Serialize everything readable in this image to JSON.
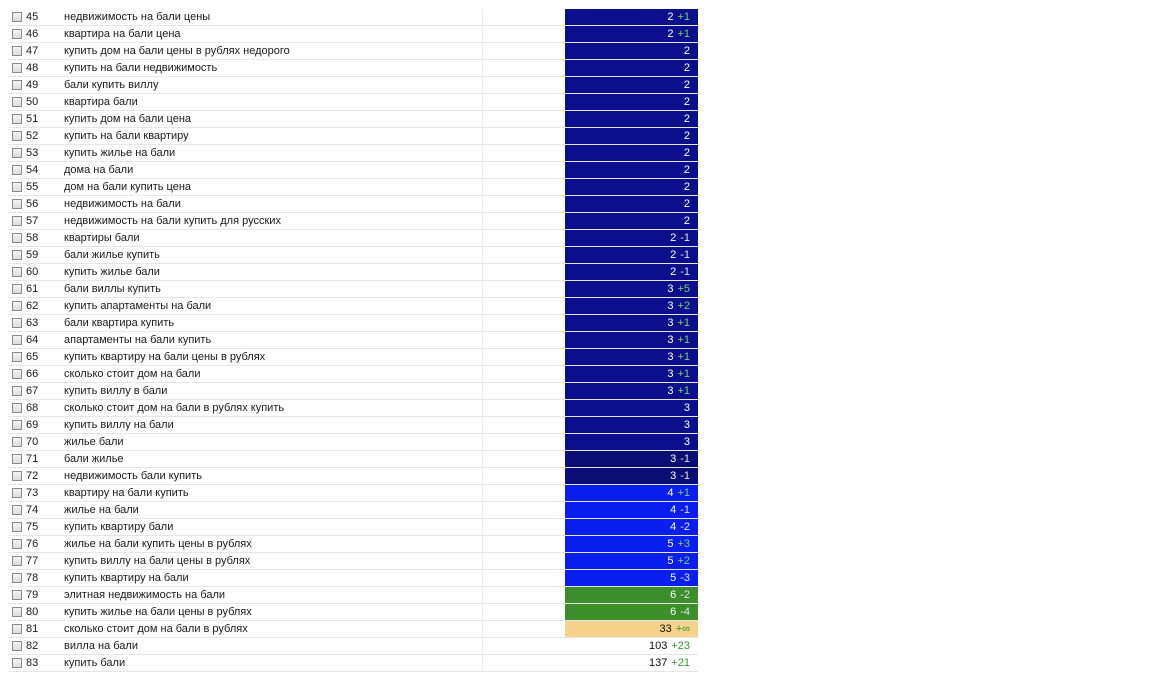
{
  "colors": {
    "navy": "#0b0f8c",
    "navy_dark": "#0a0d74",
    "blue": "#0a1ef0",
    "green": "#3b8e2a",
    "peach": "#f5d28c",
    "none": "#ffffff"
  },
  "rows": [
    {
      "num": "45",
      "keyword": "недвижимость на бали цены",
      "pos": "2",
      "chg": "+1",
      "dir": "up",
      "bg": "navy"
    },
    {
      "num": "46",
      "keyword": "квартира на бали цена",
      "pos": "2",
      "chg": "+1",
      "dir": "up",
      "bg": "navy"
    },
    {
      "num": "47",
      "keyword": "купить дом на бали цены в рублях недорого",
      "pos": "2",
      "chg": "",
      "dir": "",
      "bg": "navy"
    },
    {
      "num": "48",
      "keyword": "купить на бали недвижимость",
      "pos": "2",
      "chg": "",
      "dir": "",
      "bg": "navy"
    },
    {
      "num": "49",
      "keyword": "бали купить виллу",
      "pos": "2",
      "chg": "",
      "dir": "",
      "bg": "navy"
    },
    {
      "num": "50",
      "keyword": "квартира бали",
      "pos": "2",
      "chg": "",
      "dir": "",
      "bg": "navy"
    },
    {
      "num": "51",
      "keyword": "купить дом на бали цена",
      "pos": "2",
      "chg": "",
      "dir": "",
      "bg": "navy"
    },
    {
      "num": "52",
      "keyword": "купить на бали квартиру",
      "pos": "2",
      "chg": "",
      "dir": "",
      "bg": "navy"
    },
    {
      "num": "53",
      "keyword": "купить жилье на бали",
      "pos": "2",
      "chg": "",
      "dir": "",
      "bg": "navy"
    },
    {
      "num": "54",
      "keyword": "дома на бали",
      "pos": "2",
      "chg": "",
      "dir": "",
      "bg": "navy"
    },
    {
      "num": "55",
      "keyword": "дом на бали купить цена",
      "pos": "2",
      "chg": "",
      "dir": "",
      "bg": "navy"
    },
    {
      "num": "56",
      "keyword": "недвижимость на бали",
      "pos": "2",
      "chg": "",
      "dir": "",
      "bg": "navy"
    },
    {
      "num": "57",
      "keyword": "недвижимость на бали купить для русских",
      "pos": "2",
      "chg": "",
      "dir": "",
      "bg": "navy"
    },
    {
      "num": "58",
      "keyword": "квартиры бали",
      "pos": "2",
      "chg": "-1",
      "dir": "down",
      "bg": "navy"
    },
    {
      "num": "59",
      "keyword": "бали жилье купить",
      "pos": "2",
      "chg": "-1",
      "dir": "down",
      "bg": "navy"
    },
    {
      "num": "60",
      "keyword": "купить жилье бали",
      "pos": "2",
      "chg": "-1",
      "dir": "down",
      "bg": "navy"
    },
    {
      "num": "61",
      "keyword": "бали виллы купить",
      "pos": "3",
      "chg": "+5",
      "dir": "up",
      "bg": "navy"
    },
    {
      "num": "62",
      "keyword": "купить апартаменты на бали",
      "pos": "3",
      "chg": "+2",
      "dir": "up",
      "bg": "navy"
    },
    {
      "num": "63",
      "keyword": "бали квартира купить",
      "pos": "3",
      "chg": "+1",
      "dir": "up",
      "bg": "navy"
    },
    {
      "num": "64",
      "keyword": "апартаменты на бали купить",
      "pos": "3",
      "chg": "+1",
      "dir": "up",
      "bg": "navy"
    },
    {
      "num": "65",
      "keyword": "купить квартиру на бали цены в рублях",
      "pos": "3",
      "chg": "+1",
      "dir": "up",
      "bg": "navy"
    },
    {
      "num": "66",
      "keyword": "сколько стоит дом на бали",
      "pos": "3",
      "chg": "+1",
      "dir": "up",
      "bg": "navy"
    },
    {
      "num": "67",
      "keyword": "купить виллу в бали",
      "pos": "3",
      "chg": "+1",
      "dir": "up",
      "bg": "navy"
    },
    {
      "num": "68",
      "keyword": "сколько стоит дом на бали в рублях купить",
      "pos": "3",
      "chg": "",
      "dir": "",
      "bg": "navy"
    },
    {
      "num": "69",
      "keyword": "купить виллу на бали",
      "pos": "3",
      "chg": "",
      "dir": "",
      "bg": "navy"
    },
    {
      "num": "70",
      "keyword": "жилье бали",
      "pos": "3",
      "chg": "",
      "dir": "",
      "bg": "navy"
    },
    {
      "num": "71",
      "keyword": "бали жилье",
      "pos": "3",
      "chg": "-1",
      "dir": "down",
      "bg": "navy_dark"
    },
    {
      "num": "72",
      "keyword": "недвижимость бали купить",
      "pos": "3",
      "chg": "-1",
      "dir": "down",
      "bg": "navy_dark"
    },
    {
      "num": "73",
      "keyword": "квартиру на бали купить",
      "pos": "4",
      "chg": "+1",
      "dir": "up",
      "bg": "blue"
    },
    {
      "num": "74",
      "keyword": "жилье на бали",
      "pos": "4",
      "chg": "-1",
      "dir": "down",
      "bg": "blue"
    },
    {
      "num": "75",
      "keyword": "купить квартиру бали",
      "pos": "4",
      "chg": "-2",
      "dir": "down",
      "bg": "blue"
    },
    {
      "num": "76",
      "keyword": "жилье на бали купить цены в рублях",
      "pos": "5",
      "chg": "+3",
      "dir": "up",
      "bg": "blue"
    },
    {
      "num": "77",
      "keyword": "купить виллу на бали цены в рублях",
      "pos": "5",
      "chg": "+2",
      "dir": "up",
      "bg": "blue"
    },
    {
      "num": "78",
      "keyword": "купить квартиру на бали",
      "pos": "5",
      "chg": "-3",
      "dir": "down",
      "bg": "blue"
    },
    {
      "num": "79",
      "keyword": "элитная недвижимость на бали",
      "pos": "6",
      "chg": "-2",
      "dir": "down",
      "bg": "green"
    },
    {
      "num": "80",
      "keyword": "купить жилье на бали цены в рублях",
      "pos": "6",
      "chg": "-4",
      "dir": "down",
      "bg": "green"
    },
    {
      "num": "81",
      "keyword": "сколько стоит дом на бали в рублях",
      "pos": "33",
      "chg": "+∞",
      "dir": "inf",
      "bg": "peach"
    },
    {
      "num": "82",
      "keyword": "вилла на бали",
      "pos": "103",
      "chg": "+23",
      "dir": "up",
      "bg": "none"
    },
    {
      "num": "83",
      "keyword": "купить бали",
      "pos": "137",
      "chg": "+21",
      "dir": "up",
      "bg": "none"
    }
  ]
}
